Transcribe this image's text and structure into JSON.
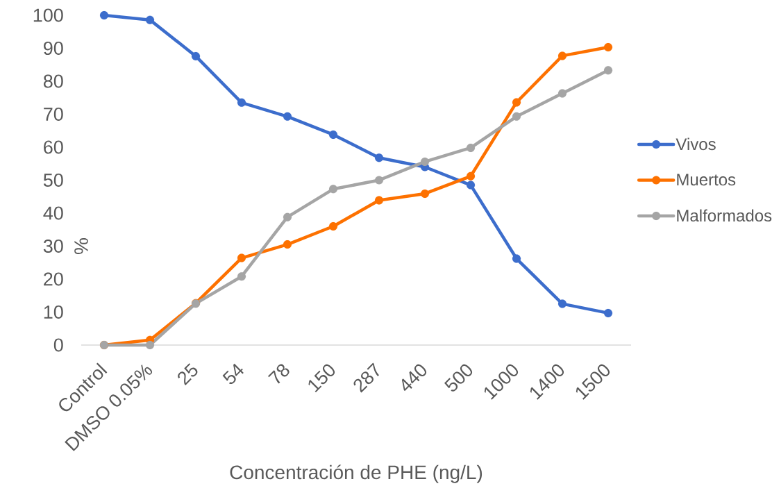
{
  "chart_data": {
    "type": "line",
    "xlabel": "Concentración de PHE (ng/L)",
    "ylabel": "%",
    "categories": [
      "Control",
      "DMSO 0.05%",
      "25",
      "54",
      "78",
      "150",
      "287",
      "440",
      "500",
      "1000",
      "1400",
      "1500"
    ],
    "ylim": [
      0,
      100
    ],
    "yticks": [
      0,
      10,
      20,
      30,
      40,
      50,
      60,
      70,
      80,
      90,
      100
    ],
    "legend": "right",
    "marker": "circle",
    "line_style": "solid",
    "series": [
      {
        "name": "Vivos",
        "color": "#3c6dcc",
        "values": [
          100,
          98.6,
          87.6,
          73.5,
          69.3,
          63.8,
          56.8,
          54.0,
          48.5,
          26.2,
          12.5,
          9.7
        ]
      },
      {
        "name": "Muertos",
        "color": "#fd7100",
        "values": [
          0,
          1.5,
          12.7,
          26.4,
          30.5,
          36.0,
          43.9,
          45.9,
          51.2,
          73.6,
          87.7,
          90.3
        ]
      },
      {
        "name": "Malformados",
        "color": "#a5a5a5",
        "values": [
          0,
          0,
          12.6,
          20.8,
          38.8,
          47.3,
          50.0,
          55.6,
          59.8,
          69.3,
          76.3,
          83.3
        ]
      }
    ]
  }
}
